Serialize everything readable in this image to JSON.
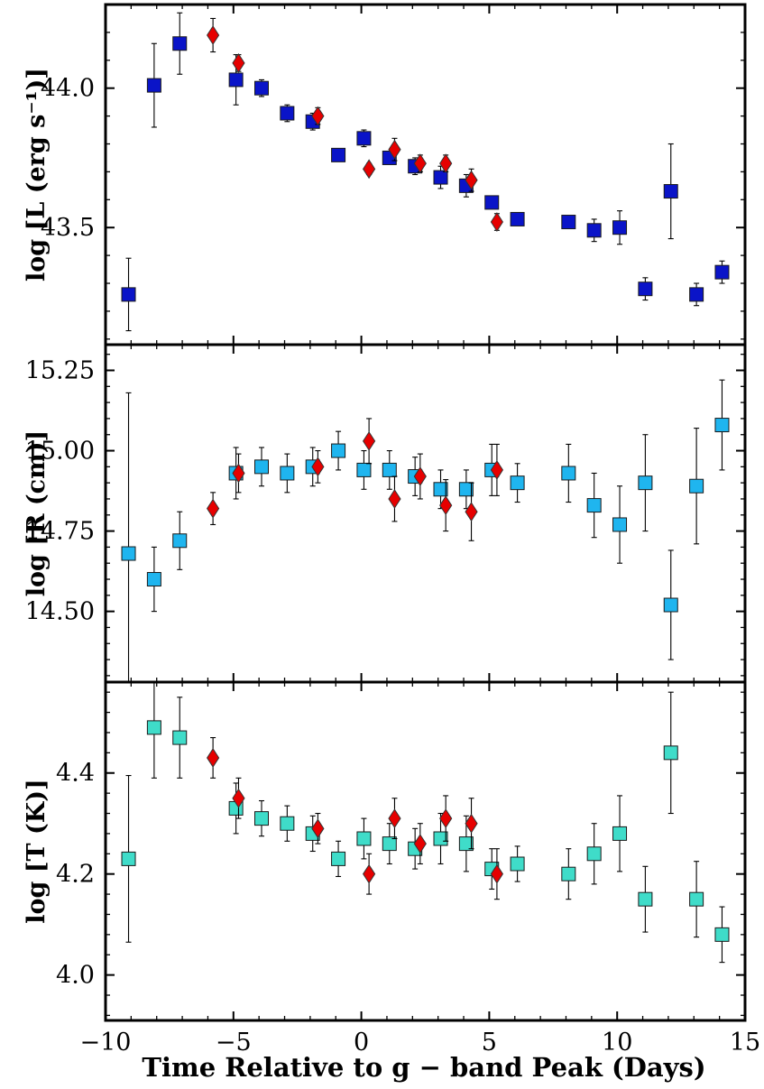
{
  "chart_data": {
    "type": "scatter",
    "xlabel": "Time Relative to g − band Peak (Days)",
    "xlim": [
      -10,
      15
    ],
    "xticks": [
      -10,
      -5,
      0,
      5,
      10,
      15
    ],
    "xtick_labels": [
      "−10",
      "−5",
      "0",
      "5",
      "10",
      "15"
    ],
    "colors": {
      "L_square": "#0a14c8",
      "R_square": "#1fb5ef",
      "T_square": "#3fdcc9",
      "diamond": "#e60000"
    },
    "panels": [
      {
        "key": "L",
        "ylabel": "log [L (erg s⁻¹)]",
        "ylim": [
          43.08,
          44.3
        ],
        "yticks": [
          43.5,
          44.0
        ],
        "ytick_labels": [
          "43.5",
          "44.0"
        ],
        "series": [
          {
            "name": "squares",
            "marker": "square",
            "color_key": "L_square",
            "points": [
              {
                "x": -9.1,
                "y": 43.26,
                "err": 0.13
              },
              {
                "x": -8.1,
                "y": 44.01,
                "err": 0.15
              },
              {
                "x": -7.1,
                "y": 44.16,
                "err": 0.11
              },
              {
                "x": -4.9,
                "y": 44.03,
                "err": 0.09
              },
              {
                "x": -3.9,
                "y": 44.0,
                "err": 0.03
              },
              {
                "x": -2.9,
                "y": 43.91,
                "err": 0.03
              },
              {
                "x": -1.9,
                "y": 43.88,
                "err": 0.03
              },
              {
                "x": -0.9,
                "y": 43.76,
                "err": 0.0
              },
              {
                "x": 0.1,
                "y": 43.82,
                "err": 0.03
              },
              {
                "x": 1.1,
                "y": 43.75,
                "err": 0.02
              },
              {
                "x": 2.1,
                "y": 43.72,
                "err": 0.03
              },
              {
                "x": 3.1,
                "y": 43.68,
                "err": 0.04
              },
              {
                "x": 4.1,
                "y": 43.65,
                "err": 0.04
              },
              {
                "x": 5.1,
                "y": 43.59,
                "err": 0.02
              },
              {
                "x": 6.1,
                "y": 43.53,
                "err": 0.0
              },
              {
                "x": 8.1,
                "y": 43.52,
                "err": 0.02
              },
              {
                "x": 9.1,
                "y": 43.49,
                "err": 0.04
              },
              {
                "x": 10.1,
                "y": 43.5,
                "err": 0.06
              },
              {
                "x": 11.1,
                "y": 43.28,
                "err": 0.04
              },
              {
                "x": 12.1,
                "y": 43.63,
                "err": 0.17
              },
              {
                "x": 13.1,
                "y": 43.26,
                "err": 0.04
              },
              {
                "x": 14.1,
                "y": 43.34,
                "err": 0.04
              }
            ]
          },
          {
            "name": "diamonds",
            "marker": "diamond",
            "color_key": "diamond",
            "points": [
              {
                "x": -5.8,
                "y": 44.19,
                "err": 0.06
              },
              {
                "x": -4.8,
                "y": 44.09,
                "err": 0.03
              },
              {
                "x": -1.7,
                "y": 43.9,
                "err": 0.03
              },
              {
                "x": 0.3,
                "y": 43.71,
                "err": 0.02
              },
              {
                "x": 1.3,
                "y": 43.78,
                "err": 0.04
              },
              {
                "x": 2.3,
                "y": 43.73,
                "err": 0.03
              },
              {
                "x": 3.3,
                "y": 43.73,
                "err": 0.03
              },
              {
                "x": 4.3,
                "y": 43.67,
                "err": 0.04
              },
              {
                "x": 5.3,
                "y": 43.52,
                "err": 0.03
              }
            ]
          }
        ]
      },
      {
        "key": "R",
        "ylabel": "log [R (cm)]",
        "ylim": [
          14.28,
          15.33
        ],
        "yticks": [
          14.5,
          14.75,
          15.0,
          15.25
        ],
        "ytick_labels": [
          "14.50",
          "14.75",
          "15.00",
          "15.25"
        ],
        "series": [
          {
            "name": "squares",
            "marker": "square",
            "color_key": "R_square",
            "points": [
              {
                "x": -9.1,
                "y": 14.68,
                "err": 0.5
              },
              {
                "x": -8.1,
                "y": 14.6,
                "err": 0.1
              },
              {
                "x": -7.1,
                "y": 14.72,
                "err": 0.09
              },
              {
                "x": -4.9,
                "y": 14.93,
                "err": 0.08
              },
              {
                "x": -3.9,
                "y": 14.95,
                "err": 0.06
              },
              {
                "x": -2.9,
                "y": 14.93,
                "err": 0.06
              },
              {
                "x": -1.9,
                "y": 14.95,
                "err": 0.06
              },
              {
                "x": -0.9,
                "y": 15.0,
                "err": 0.06
              },
              {
                "x": 0.1,
                "y": 14.94,
                "err": 0.06
              },
              {
                "x": 1.1,
                "y": 14.94,
                "err": 0.06
              },
              {
                "x": 2.1,
                "y": 14.92,
                "err": 0.06
              },
              {
                "x": 3.1,
                "y": 14.88,
                "err": 0.06
              },
              {
                "x": 4.1,
                "y": 14.88,
                "err": 0.06
              },
              {
                "x": 5.1,
                "y": 14.94,
                "err": 0.08
              },
              {
                "x": 6.1,
                "y": 14.9,
                "err": 0.06
              },
              {
                "x": 8.1,
                "y": 14.93,
                "err": 0.09
              },
              {
                "x": 9.1,
                "y": 14.83,
                "err": 0.1
              },
              {
                "x": 10.1,
                "y": 14.77,
                "err": 0.12
              },
              {
                "x": 11.1,
                "y": 14.9,
                "err": 0.15
              },
              {
                "x": 12.1,
                "y": 14.52,
                "err": 0.17
              },
              {
                "x": 13.1,
                "y": 14.89,
                "err": 0.18
              },
              {
                "x": 14.1,
                "y": 15.08,
                "err": 0.14
              }
            ]
          },
          {
            "name": "diamonds",
            "marker": "diamond",
            "color_key": "diamond",
            "points": [
              {
                "x": -5.8,
                "y": 14.82,
                "err": 0.05
              },
              {
                "x": -4.8,
                "y": 14.93,
                "err": 0.06
              },
              {
                "x": -1.7,
                "y": 14.95,
                "err": 0.05
              },
              {
                "x": 0.3,
                "y": 15.03,
                "err": 0.07
              },
              {
                "x": 1.3,
                "y": 14.85,
                "err": 0.07
              },
              {
                "x": 2.3,
                "y": 14.92,
                "err": 0.07
              },
              {
                "x": 3.3,
                "y": 14.83,
                "err": 0.08
              },
              {
                "x": 4.3,
                "y": 14.81,
                "err": 0.09
              },
              {
                "x": 5.3,
                "y": 14.94,
                "err": 0.08
              }
            ]
          }
        ]
      },
      {
        "key": "T",
        "ylabel": "log [T (K)]",
        "ylim": [
          3.91,
          4.58
        ],
        "yticks": [
          4.0,
          4.2,
          4.4
        ],
        "ytick_labels": [
          "4.0",
          "4.2",
          "4.4"
        ],
        "series": [
          {
            "name": "squares",
            "marker": "square",
            "color_key": "T_square",
            "points": [
              {
                "x": -9.1,
                "y": 4.23,
                "err": 0.165
              },
              {
                "x": -8.1,
                "y": 4.49,
                "err": 0.1
              },
              {
                "x": -7.1,
                "y": 4.47,
                "err": 0.08
              },
              {
                "x": -4.9,
                "y": 4.33,
                "err": 0.05
              },
              {
                "x": -3.9,
                "y": 4.31,
                "err": 0.035
              },
              {
                "x": -2.9,
                "y": 4.3,
                "err": 0.035
              },
              {
                "x": -1.9,
                "y": 4.28,
                "err": 0.035
              },
              {
                "x": -0.9,
                "y": 4.23,
                "err": 0.035
              },
              {
                "x": 0.1,
                "y": 4.27,
                "err": 0.04
              },
              {
                "x": 1.1,
                "y": 4.26,
                "err": 0.04
              },
              {
                "x": 2.1,
                "y": 4.25,
                "err": 0.04
              },
              {
                "x": 3.1,
                "y": 4.27,
                "err": 0.05
              },
              {
                "x": 4.1,
                "y": 4.26,
                "err": 0.055
              },
              {
                "x": 5.1,
                "y": 4.21,
                "err": 0.04
              },
              {
                "x": 6.1,
                "y": 4.22,
                "err": 0.035
              },
              {
                "x": 8.1,
                "y": 4.2,
                "err": 0.05
              },
              {
                "x": 9.1,
                "y": 4.24,
                "err": 0.06
              },
              {
                "x": 10.1,
                "y": 4.28,
                "err": 0.075
              },
              {
                "x": 11.1,
                "y": 4.15,
                "err": 0.065
              },
              {
                "x": 12.1,
                "y": 4.44,
                "err": 0.12
              },
              {
                "x": 13.1,
                "y": 4.15,
                "err": 0.075
              },
              {
                "x": 14.1,
                "y": 4.08,
                "err": 0.055
              }
            ]
          },
          {
            "name": "diamonds",
            "marker": "diamond",
            "color_key": "diamond",
            "points": [
              {
                "x": -5.8,
                "y": 4.43,
                "err": 0.04
              },
              {
                "x": -4.8,
                "y": 4.35,
                "err": 0.04
              },
              {
                "x": -1.7,
                "y": 4.29,
                "err": 0.03
              },
              {
                "x": 0.3,
                "y": 4.2,
                "err": 0.04
              },
              {
                "x": 1.3,
                "y": 4.31,
                "err": 0.04
              },
              {
                "x": 2.3,
                "y": 4.26,
                "err": 0.04
              },
              {
                "x": 3.3,
                "y": 4.31,
                "err": 0.045
              },
              {
                "x": 4.3,
                "y": 4.3,
                "err": 0.05
              },
              {
                "x": 5.3,
                "y": 4.2,
                "err": 0.05
              }
            ]
          }
        ]
      }
    ]
  }
}
